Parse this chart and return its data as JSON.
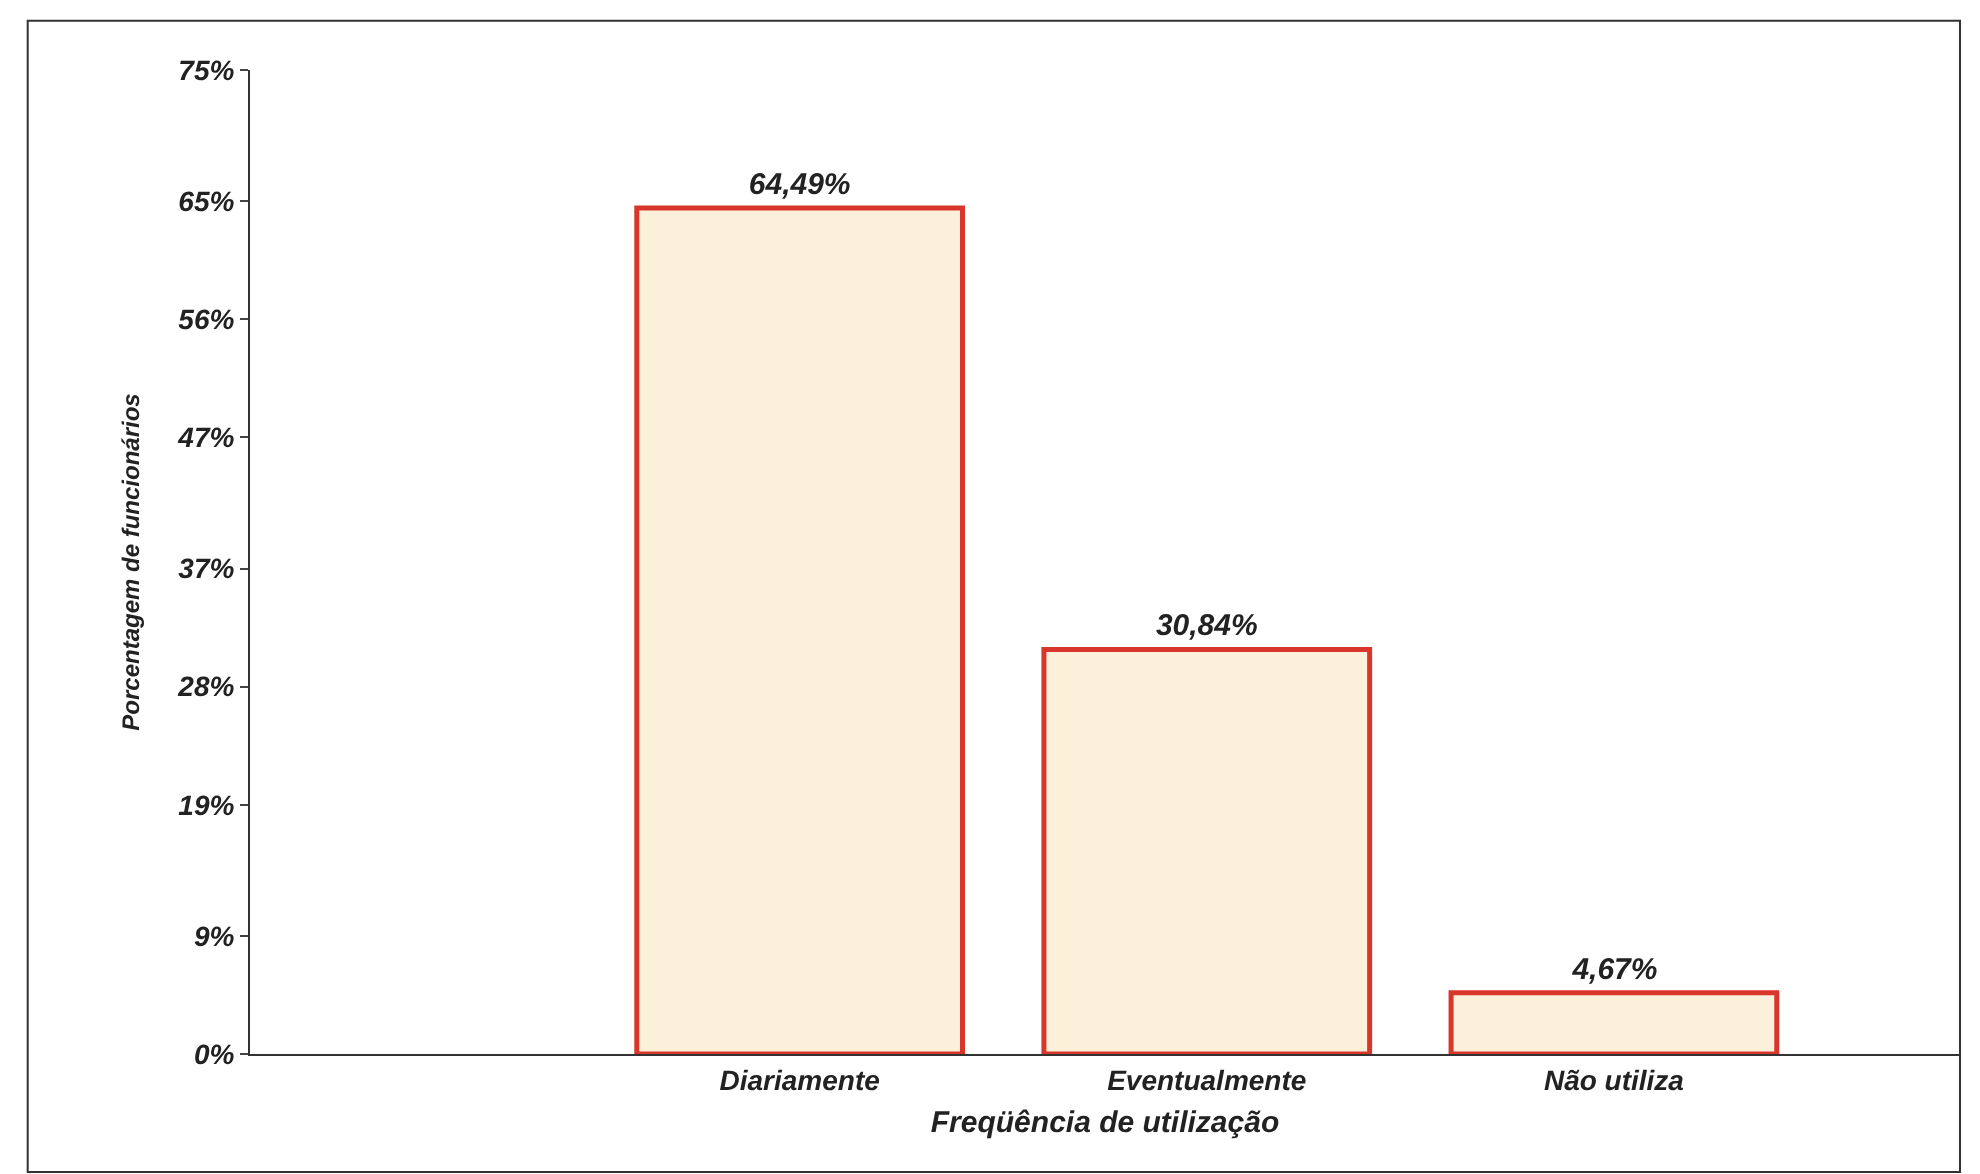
{
  "chart_data": {
    "type": "bar",
    "xlabel": "Freqüência de utilização",
    "ylabel": "Porcentagem de funcionários",
    "categories": [
      "Diariamente",
      "Eventualmente",
      "Não utiliza"
    ],
    "series": [
      {
        "color": "#fbf0d9",
        "values": [
          64.49,
          30.84,
          4.67
        ],
        "value_labels": [
          "64,49%",
          "30,84%",
          "4,67%"
        ]
      }
    ],
    "ylim": [
      0,
      75
    ],
    "yticks": [
      {
        "value": 0,
        "label": "0%"
      },
      {
        "value": 9,
        "label": "9%"
      },
      {
        "value": 19,
        "label": "19%"
      },
      {
        "value": 28,
        "label": "28%"
      },
      {
        "value": 37,
        "label": "37%"
      },
      {
        "value": 47,
        "label": "47%"
      },
      {
        "value": 56,
        "label": "56%"
      },
      {
        "value": 65,
        "label": "65%"
      },
      {
        "value": 75,
        "label": "75%"
      }
    ],
    "legend": false
  }
}
